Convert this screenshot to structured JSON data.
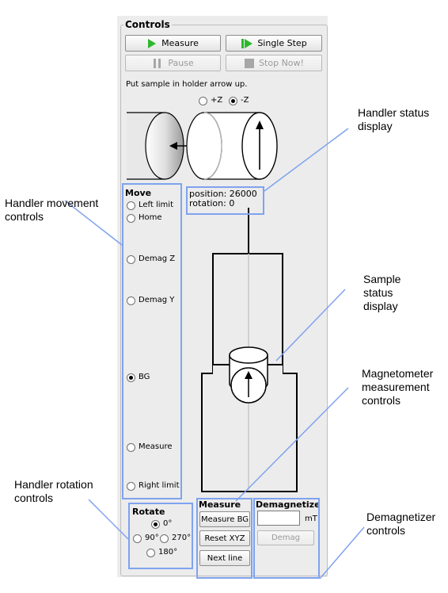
{
  "controls": {
    "title": "Controls",
    "measure_label": "Measure",
    "single_step_label": "Single Step",
    "pause_label": "Pause",
    "stop_label": "Stop Now!",
    "instruction": "Put sample in holder arrow up.",
    "orientation": {
      "plus_label": "+Z",
      "minus_label": "-Z",
      "selected": "-Z"
    }
  },
  "move": {
    "title": "Move",
    "options": [
      "Left limit",
      "Home",
      "Demag Z",
      "Demag Y",
      "BG",
      "Measure",
      "Right limit"
    ],
    "selected": "BG"
  },
  "status": {
    "position": "position: 26000",
    "rotation": "rotation: 0"
  },
  "rotate": {
    "title": "Rotate",
    "options": [
      "0°",
      "90°",
      "270°",
      "180°"
    ],
    "selected": "0°"
  },
  "measure_group": {
    "title": "Measure",
    "measure_bg_label": "Measure BG",
    "reset_xyz_label": "Reset XYZ",
    "next_line_label": "Next line"
  },
  "demagnetize": {
    "title": "Demagnetize",
    "unit": "mT",
    "demag_label": "Demag",
    "value": ""
  },
  "annotations": {
    "handler_status": "Handler status\ndisplay",
    "handler_movement": "Handler movement\ncontrols",
    "sample_status": "Sample\nstatus\ndisplay",
    "magnetometer": "Magnetometer\nmeasurement\ncontrols",
    "handler_rotation": "Handler rotation\ncontrols",
    "demagnetizer": "Demagnetizer\ncontrols"
  },
  "colors": {
    "highlight": "#7fa3ee",
    "play_icon": "#2db82d",
    "panel_bg": "#ececec"
  }
}
